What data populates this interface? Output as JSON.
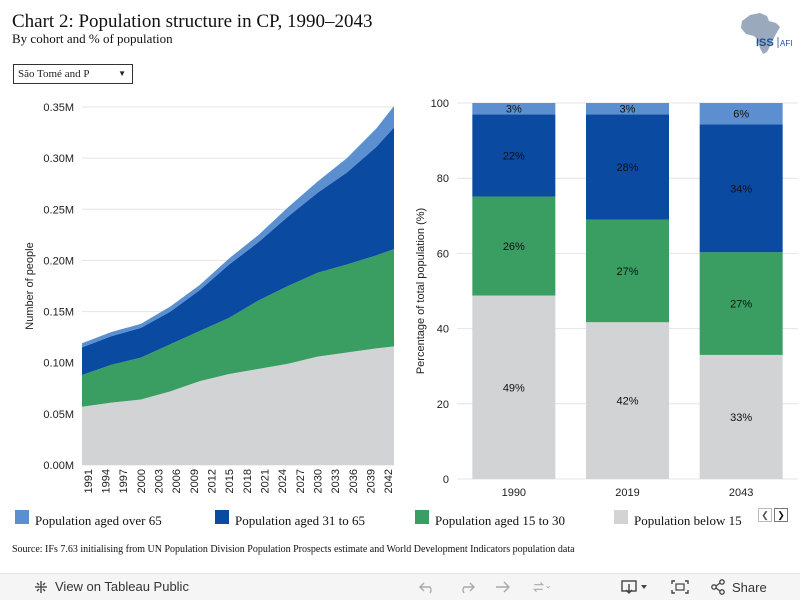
{
  "header": {
    "title": "Chart 2: Population structure in CP, 1990–2043",
    "subtitle": "By cohort and % of population",
    "logo_text": "ISS",
    "logo_suffix": "AFI"
  },
  "filter": {
    "selected": "São Tomé and P"
  },
  "colors": {
    "over65": "#5b8fd0",
    "age31_65": "#0a4aa1",
    "age15_30": "#3a9e62",
    "below15": "#d2d3d5"
  },
  "chart_data": [
    {
      "type": "area",
      "stacked": true,
      "ylabel": "Number of people",
      "ylim": [
        0,
        0.35
      ],
      "yticks": [
        0,
        0.05,
        0.1,
        0.15,
        0.2,
        0.25,
        0.3,
        0.35
      ],
      "ytick_labels": [
        "0.00M",
        "0.05M",
        "0.10M",
        "0.15M",
        "0.20M",
        "0.25M",
        "0.30M",
        "0.35M"
      ],
      "xlim": [
        1990,
        2043
      ],
      "xtick_labels": [
        "1991",
        "1994",
        "1997",
        "2000",
        "2003",
        "2006",
        "2009",
        "2012",
        "2015",
        "2018",
        "2021",
        "2024",
        "2027",
        "2030",
        "2033",
        "2036",
        "2039",
        "2042"
      ],
      "x": [
        1990,
        1995,
        2000,
        2005,
        2010,
        2015,
        2020,
        2025,
        2030,
        2035,
        2040,
        2043
      ],
      "series": [
        {
          "name": "Population below 15",
          "values": [
            0.057,
            0.061,
            0.064,
            0.072,
            0.082,
            0.089,
            0.094,
            0.099,
            0.106,
            0.11,
            0.114,
            0.116
          ]
        },
        {
          "name": "Population aged 15 to 30",
          "values": [
            0.031,
            0.037,
            0.041,
            0.046,
            0.049,
            0.055,
            0.067,
            0.076,
            0.082,
            0.086,
            0.091,
            0.095
          ]
        },
        {
          "name": "Population aged 31 to 65",
          "values": [
            0.027,
            0.028,
            0.029,
            0.032,
            0.04,
            0.052,
            0.057,
            0.068,
            0.078,
            0.09,
            0.106,
            0.119
          ]
        },
        {
          "name": "Population aged over 65",
          "values": [
            0.004,
            0.004,
            0.004,
            0.005,
            0.005,
            0.006,
            0.007,
            0.009,
            0.011,
            0.014,
            0.018,
            0.021
          ]
        }
      ]
    },
    {
      "type": "bar",
      "stacked": true,
      "ylabel": "Percentage of total population (%)",
      "ylim": [
        0,
        100
      ],
      "yticks": [
        0,
        20,
        40,
        60,
        80,
        100
      ],
      "categories": [
        "1990",
        "2019",
        "2043"
      ],
      "series": [
        {
          "name": "Population below 15",
          "values": [
            48.8,
            41.7,
            33.0
          ],
          "labels": [
            "49%",
            "42%",
            "33%"
          ]
        },
        {
          "name": "Population aged 15 to 30",
          "values": [
            26.3,
            27.3,
            27.3
          ],
          "labels": [
            "26%",
            "27%",
            "27%"
          ]
        },
        {
          "name": "Population aged 31 to 65",
          "values": [
            21.9,
            28.0,
            34.0
          ],
          "labels": [
            "22%",
            "28%",
            "34%"
          ]
        },
        {
          "name": "Population aged over 65",
          "values": [
            3.0,
            3.0,
            5.7
          ],
          "labels": [
            "3%",
            "3%",
            "6%"
          ]
        }
      ]
    }
  ],
  "legend": [
    {
      "label": "Population aged over 65",
      "color_key": "over65"
    },
    {
      "label": "Population aged 31 to 65",
      "color_key": "age31_65"
    },
    {
      "label": "Population aged 15 to 30",
      "color_key": "age15_30"
    },
    {
      "label": "Population below 15",
      "color_key": "below15"
    }
  ],
  "source": "Source: IFs 7.63 initialising from UN Population Division Population Prospects estimate and World Development Indicators population data",
  "toolbar": {
    "view_label": "View on Tableau Public",
    "share_label": "Share",
    "icons": [
      "undo-icon",
      "redo-icon",
      "revert-icon",
      "refresh-icon",
      "download-icon",
      "fullscreen-icon",
      "share-icon"
    ]
  }
}
